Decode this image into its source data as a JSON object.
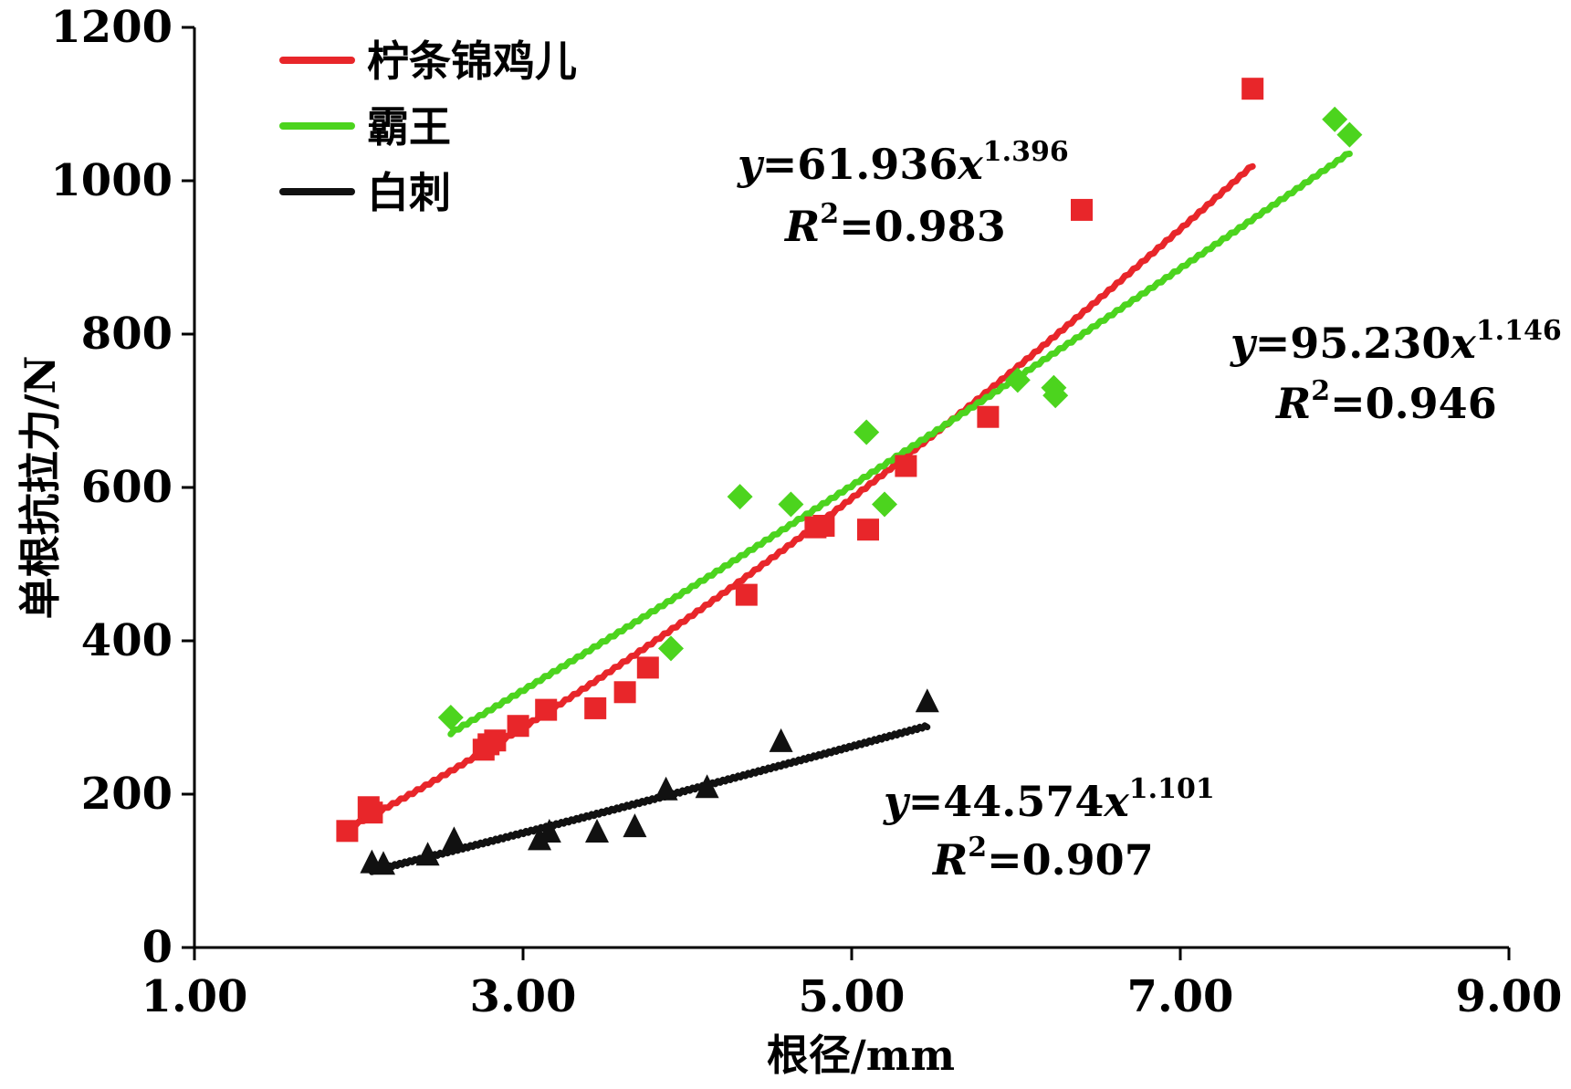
{
  "chart_data": {
    "type": "scatter",
    "xlabel": "根径/mm",
    "ylabel": "单根抗拉力/N",
    "xlim": [
      1.0,
      9.0
    ],
    "ylim": [
      0,
      1200
    ],
    "x_ticks": [
      "1.00",
      "3.00",
      "5.00",
      "7.00",
      "9.00"
    ],
    "y_ticks": [
      "0",
      "200",
      "400",
      "600",
      "800",
      "1000",
      "1200"
    ],
    "grid": false,
    "legend_position": "top-left",
    "series": [
      {
        "name": "柠条锦鸡儿",
        "color": "#e8262a",
        "marker": "square",
        "points": [
          [
            1.93,
            152
          ],
          [
            2.06,
            183
          ],
          [
            2.08,
            176
          ],
          [
            2.76,
            258
          ],
          [
            2.79,
            265
          ],
          [
            2.83,
            270
          ],
          [
            2.97,
            289
          ],
          [
            3.14,
            310
          ],
          [
            3.44,
            312
          ],
          [
            3.62,
            333
          ],
          [
            3.76,
            365
          ],
          [
            4.36,
            460
          ],
          [
            4.78,
            548
          ],
          [
            4.83,
            550
          ],
          [
            5.1,
            545
          ],
          [
            5.33,
            628
          ],
          [
            5.83,
            692
          ],
          [
            6.4,
            962
          ],
          [
            7.44,
            1120
          ]
        ],
        "fit": {
          "a": 61.936,
          "b": 1.396,
          "x_range": [
            1.93,
            7.44
          ],
          "equation_y": "61.936",
          "equation_exp": "1.396",
          "r2": "0.983"
        }
      },
      {
        "name": "霸王",
        "color": "#4cd41e",
        "marker": "diamond",
        "points": [
          [
            2.56,
            300
          ],
          [
            3.9,
            390
          ],
          [
            4.32,
            588
          ],
          [
            4.63,
            578
          ],
          [
            5.09,
            672
          ],
          [
            5.2,
            578
          ],
          [
            6.01,
            740
          ],
          [
            6.23,
            730
          ],
          [
            6.24,
            720
          ],
          [
            7.94,
            1080
          ],
          [
            8.03,
            1060
          ]
        ],
        "fit": {
          "a": 95.23,
          "b": 1.146,
          "x_range": [
            2.56,
            8.03
          ],
          "equation_y": "95.230",
          "equation_exp": "1.146",
          "r2": "0.946"
        }
      },
      {
        "name": "白刺",
        "color": "#111111",
        "marker": "triangle",
        "points": [
          [
            2.08,
            110
          ],
          [
            2.15,
            108
          ],
          [
            2.42,
            120
          ],
          [
            2.58,
            140
          ],
          [
            3.1,
            140
          ],
          [
            3.16,
            150
          ],
          [
            3.45,
            150
          ],
          [
            3.68,
            157
          ],
          [
            3.87,
            205
          ],
          [
            4.12,
            208
          ],
          [
            4.57,
            268
          ],
          [
            5.46,
            320
          ]
        ],
        "fit": {
          "a": 44.574,
          "b": 1.101,
          "x_range": [
            2.08,
            5.46
          ],
          "equation_y": "44.574",
          "equation_exp": "1.101",
          "r2": "0.907"
        }
      }
    ]
  }
}
